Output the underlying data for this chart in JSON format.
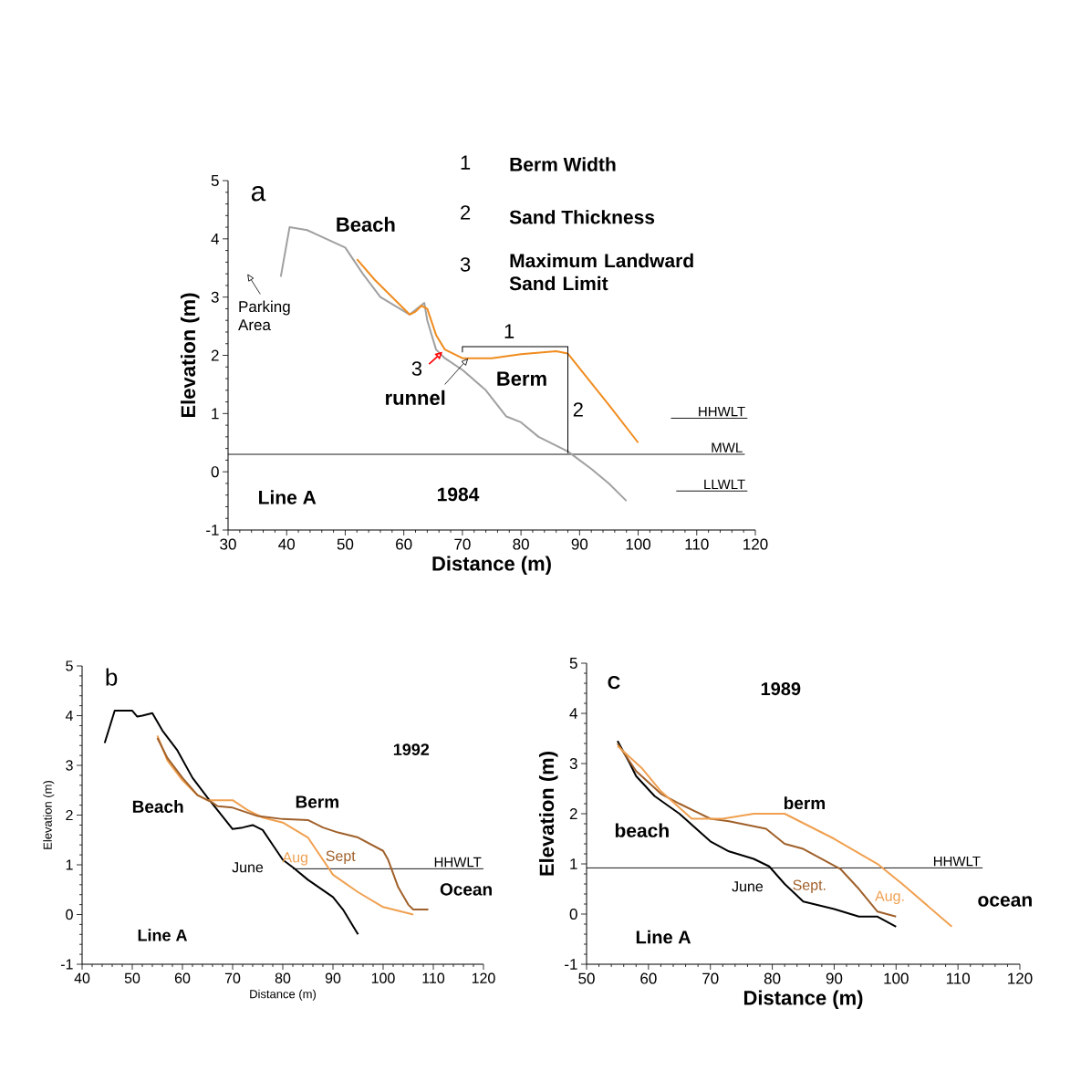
{
  "chart_data": [
    {
      "type": "line",
      "xlabel": "Distance (m)",
      "ylabel": "Elevation (m)",
      "xlim": [
        30,
        120
      ],
      "ylim": [
        -1,
        5
      ],
      "xticks": [
        30,
        40,
        50,
        60,
        70,
        80,
        90,
        100,
        110,
        120
      ],
      "yticks": [
        -1,
        0,
        1,
        2,
        3,
        4,
        5
      ],
      "series": [
        {
          "color": "#a0a0a0",
          "x": [
            39,
            40.5,
            43.5,
            50,
            53,
            56,
            61,
            63.5,
            64,
            65.5,
            67,
            70,
            74,
            77.5,
            80,
            83,
            88,
            92,
            95,
            98
          ],
          "values": [
            3.35,
            4.2,
            4.15,
            3.85,
            3.4,
            3.0,
            2.7,
            2.9,
            2.6,
            2.1,
            1.95,
            1.75,
            1.4,
            0.95,
            0.85,
            0.6,
            0.35,
            0.05,
            -0.2,
            -0.5
          ]
        },
        {
          "color": "#f08c1e",
          "x": [
            52,
            55,
            58,
            61,
            62,
            63,
            64,
            65.5,
            67,
            70,
            75,
            80,
            86,
            88,
            93,
            95,
            100
          ],
          "values": [
            3.65,
            3.3,
            3.0,
            2.7,
            2.75,
            2.85,
            2.8,
            2.35,
            2.1,
            1.95,
            1.95,
            2.02,
            2.07,
            2.03,
            1.4,
            1.15,
            0.5
          ]
        }
      ],
      "ref_lines": [
        {
          "axis": "y",
          "value": 0.92,
          "label": "HHWLT"
        },
        {
          "axis": "y",
          "value": 0.3,
          "label": "MWL"
        },
        {
          "axis": "y",
          "value": -0.33,
          "label": "LLWLT"
        }
      ],
      "annotations": [
        "Beach",
        "Berm",
        {
          "text": "runnel",
          "x": 71,
          "y": 1.95
        },
        "1",
        "2",
        "3",
        "a",
        "Line A",
        "1984",
        "1",
        "Berm Width",
        "2",
        "Sand Thickness",
        "3",
        "Maximum Landward Sand Limit",
        "Parking Area"
      ]
    },
    {
      "type": "line",
      "xlabel": "Distance (m)",
      "ylabel": "Elevation (m)",
      "xlim": [
        40,
        120
      ],
      "ylim": [
        -1,
        5
      ],
      "xticks": [
        40,
        50,
        60,
        70,
        80,
        90,
        100,
        110,
        120
      ],
      "yticks": [
        -1,
        0,
        1,
        2,
        3,
        4,
        5
      ],
      "series": [
        {
          "name": "June",
          "color": "#000000",
          "x": [
            44.5,
            46.5,
            50,
            51,
            52,
            54,
            56,
            59,
            62,
            65,
            67,
            70,
            72,
            74,
            76,
            78,
            80,
            82,
            85,
            90,
            92,
            95
          ],
          "values": [
            3.45,
            4.1,
            4.1,
            3.98,
            4.0,
            4.05,
            3.7,
            3.3,
            2.75,
            2.35,
            2.1,
            1.72,
            1.75,
            1.8,
            1.7,
            1.4,
            1.1,
            0.95,
            0.7,
            0.35,
            0.1,
            -0.4
          ]
        },
        {
          "name": "Aug",
          "color": "#f0a050",
          "x": [
            55,
            57,
            60,
            63,
            65,
            70,
            73,
            76,
            80,
            85,
            88,
            90,
            95,
            100,
            106
          ],
          "values": [
            3.6,
            3.1,
            2.7,
            2.4,
            2.3,
            2.3,
            2.1,
            1.95,
            1.85,
            1.55,
            1.1,
            0.8,
            0.45,
            0.15,
            0.0
          ]
        },
        {
          "name": "Sept",
          "color": "#a0602a",
          "x": [
            55,
            57,
            60,
            63,
            66,
            67,
            70,
            75,
            80,
            85,
            88,
            91,
            95,
            100,
            101,
            103,
            105,
            106,
            109
          ],
          "values": [
            3.55,
            3.15,
            2.75,
            2.4,
            2.25,
            2.18,
            2.15,
            1.98,
            1.92,
            1.9,
            1.75,
            1.65,
            1.55,
            1.28,
            1.1,
            0.55,
            0.2,
            0.1,
            0.1
          ]
        }
      ],
      "ref_lines": [
        {
          "axis": "y",
          "value": 0.92,
          "label": "HHWLT"
        }
      ],
      "annotations": [
        "Beach",
        "Berm",
        "Ocean",
        "b",
        "1992",
        "Line A"
      ]
    },
    {
      "type": "line",
      "xlabel": "Distance (m)",
      "ylabel": "Elevation (m)",
      "xlim": [
        50,
        120
      ],
      "ylim": [
        -1,
        5
      ],
      "xticks": [
        50,
        60,
        70,
        80,
        90,
        100,
        110,
        120
      ],
      "yticks": [
        -1,
        0,
        1,
        2,
        3,
        4,
        5
      ],
      "series": [
        {
          "name": "June",
          "color": "#000000",
          "x": [
            55,
            57,
            58,
            61,
            65,
            70,
            73,
            77,
            79.5,
            82,
            85,
            90,
            94,
            97,
            100
          ],
          "values": [
            3.45,
            3.0,
            2.75,
            2.35,
            2.0,
            1.45,
            1.25,
            1.1,
            0.95,
            0.6,
            0.25,
            0.1,
            -0.05,
            -0.05,
            -0.25
          ]
        },
        {
          "name": "Sept.",
          "color": "#a0602a",
          "x": [
            55,
            58,
            62,
            65,
            70,
            73,
            79,
            82,
            85,
            88,
            91,
            94,
            97,
            100
          ],
          "values": [
            3.4,
            2.85,
            2.4,
            2.2,
            1.9,
            1.85,
            1.7,
            1.4,
            1.3,
            1.1,
            0.9,
            0.5,
            0.05,
            -0.05
          ]
        },
        {
          "name": "Aug.",
          "color": "#f0a050",
          "x": [
            55,
            59,
            62,
            67,
            72,
            77,
            82,
            90,
            97,
            101,
            109
          ],
          "values": [
            3.35,
            2.9,
            2.45,
            1.9,
            1.9,
            2.0,
            2.0,
            1.5,
            1.0,
            0.6,
            -0.25
          ]
        }
      ],
      "ref_lines": [
        {
          "axis": "y",
          "value": 0.92,
          "label": "HHWLT"
        }
      ],
      "annotations": [
        "berm",
        "beach",
        "ocean",
        "C",
        "1989",
        "Line A"
      ]
    }
  ]
}
